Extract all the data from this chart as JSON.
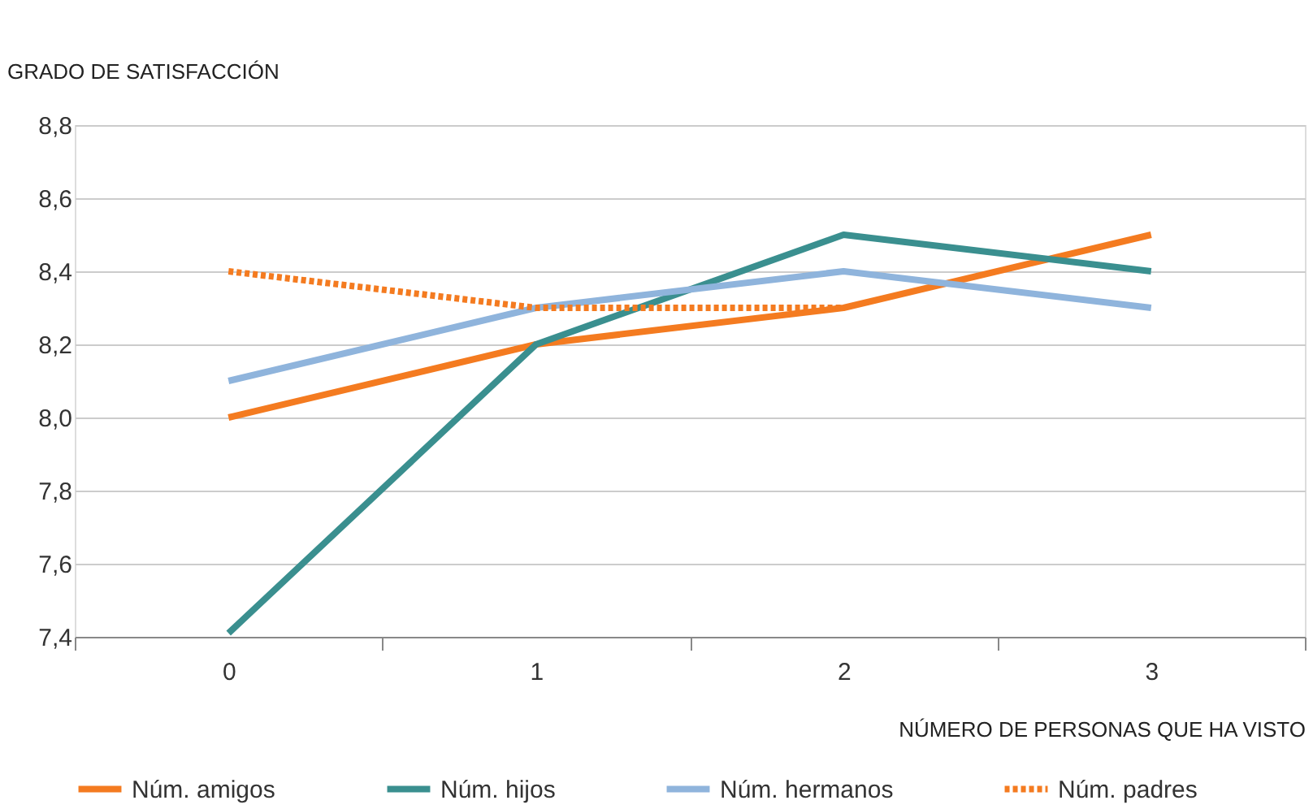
{
  "chart_data": {
    "type": "line",
    "xlabel": "NÚMERO DE PERSONAS QUE HA VISTO",
    "ylabel": "GRADO DE SATISFACCIÓN",
    "categories": [
      "0",
      "1",
      "2",
      "3"
    ],
    "series": [
      {
        "name": "Núm. amigos",
        "color": "#f47b20",
        "values": [
          8.0,
          8.2,
          8.3,
          8.5
        ],
        "line_style": "solid"
      },
      {
        "name": "Núm. hijos",
        "color": "#3a8f8f",
        "values": [
          7.41,
          8.2,
          8.5,
          8.4
        ],
        "line_style": "solid"
      },
      {
        "name": "Núm. hermanos",
        "color": "#8fb4dc",
        "values": [
          8.1,
          8.3,
          8.4,
          8.3
        ],
        "line_style": "solid"
      },
      {
        "name": "Núm. padres",
        "color": "#f47b20",
        "values": [
          8.4,
          8.3,
          8.3,
          null
        ],
        "line_style": "dotted"
      }
    ],
    "ylim": [
      7.4,
      8.8
    ],
    "yticks": [
      {
        "value": 7.4,
        "label": "7,4"
      },
      {
        "value": 7.6,
        "label": "7,6"
      },
      {
        "value": 7.8,
        "label": "7,8"
      },
      {
        "value": 8.0,
        "label": "8,0"
      },
      {
        "value": 8.2,
        "label": "8,2"
      },
      {
        "value": 8.4,
        "label": "8,4"
      },
      {
        "value": 8.6,
        "label": "8,6"
      },
      {
        "value": 8.8,
        "label": "8,8"
      }
    ],
    "grid": "y",
    "legend": "bottom",
    "marker": "none"
  }
}
